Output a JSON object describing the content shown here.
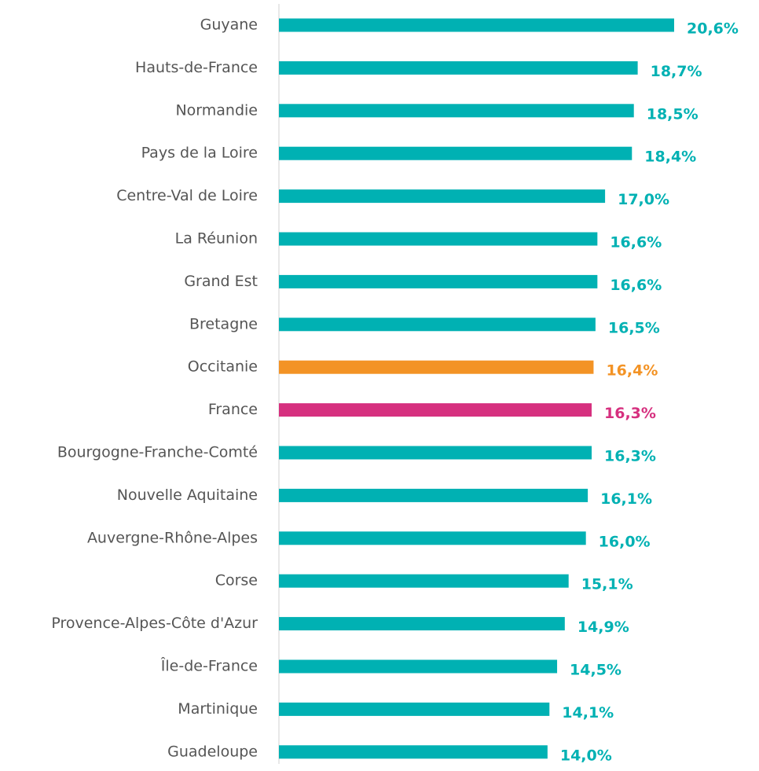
{
  "chart_data": {
    "type": "barh",
    "categories": [
      "Guyane",
      "Hauts-de-France",
      "Normandie",
      "Pays de la Loire",
      "Centre-Val de Loire",
      "La Réunion",
      "Grand Est",
      "Bretagne",
      "Occitanie",
      "France",
      "Bourgogne-Franche-Comté",
      "Nouvelle Aquitaine",
      "Auvergne-Rhône-Alpes",
      "Corse",
      "Provence-Alpes-Côte d'Azur",
      "Île-de-France",
      "Martinique",
      "Guadeloupe"
    ],
    "values": [
      20.6,
      18.7,
      18.5,
      18.4,
      17.0,
      16.6,
      16.6,
      16.5,
      16.4,
      16.3,
      16.3,
      16.1,
      16.0,
      15.1,
      14.9,
      14.5,
      14.1,
      14.0
    ],
    "value_labels": [
      "20,6%",
      "18,7%",
      "18,5%",
      "18,4%",
      "17,0%",
      "16,6%",
      "16,6%",
      "16,5%",
      "16,4%",
      "16,3%",
      "16,3%",
      "16,1%",
      "16,0%",
      "15,1%",
      "14,9%",
      "14,5%",
      "14,1%",
      "14,0%"
    ],
    "colors": [
      "#00b1b3",
      "#00b1b3",
      "#00b1b3",
      "#00b1b3",
      "#00b1b3",
      "#00b1b3",
      "#00b1b3",
      "#00b1b3",
      "#f39325",
      "#d6307f",
      "#00b1b3",
      "#00b1b3",
      "#00b1b3",
      "#00b1b3",
      "#00b1b3",
      "#00b1b3",
      "#00b1b3",
      "#00b1b3"
    ]
  }
}
